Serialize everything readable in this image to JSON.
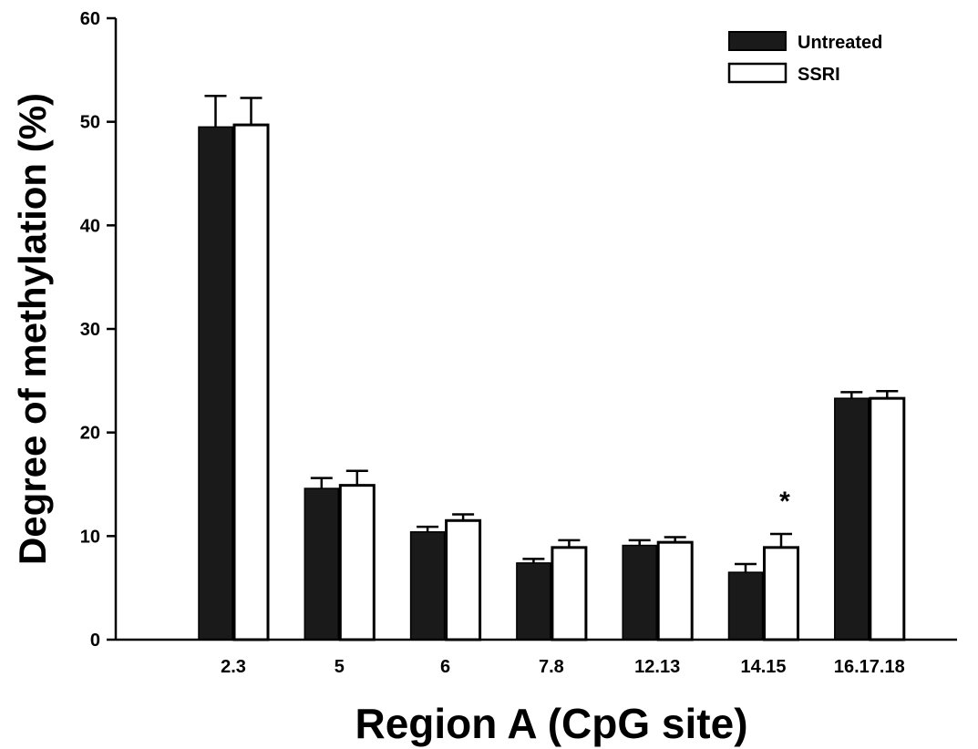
{
  "chart_data": {
    "type": "bar",
    "title": "",
    "xlabel": "Region A (CpG site)",
    "ylabel": "Degree of methylation (%)",
    "ylim": [
      0,
      60
    ],
    "yticks": [
      "0",
      "10",
      "20",
      "30",
      "40",
      "50",
      "60"
    ],
    "categories": [
      "2.3",
      "5",
      "6",
      "7.8",
      "12.13",
      "14.15",
      "16.17.18"
    ],
    "series": [
      {
        "name": "Untreated",
        "color": "#1a1a1a",
        "values": [
          49.5,
          14.6,
          10.4,
          7.4,
          9.1,
          6.5,
          23.3
        ],
        "errors": [
          3.0,
          1.0,
          0.5,
          0.4,
          0.5,
          0.8,
          0.6
        ]
      },
      {
        "name": "SSRI",
        "color": "#ffffff",
        "values": [
          49.7,
          14.9,
          11.5,
          8.9,
          9.4,
          8.9,
          23.3
        ],
        "errors": [
          2.6,
          1.4,
          0.6,
          0.7,
          0.5,
          1.3,
          0.7
        ]
      }
    ],
    "annotations": [
      {
        "text": "*",
        "category": "14.15",
        "series": "SSRI"
      }
    ],
    "legend": "top-right",
    "grid": false
  }
}
